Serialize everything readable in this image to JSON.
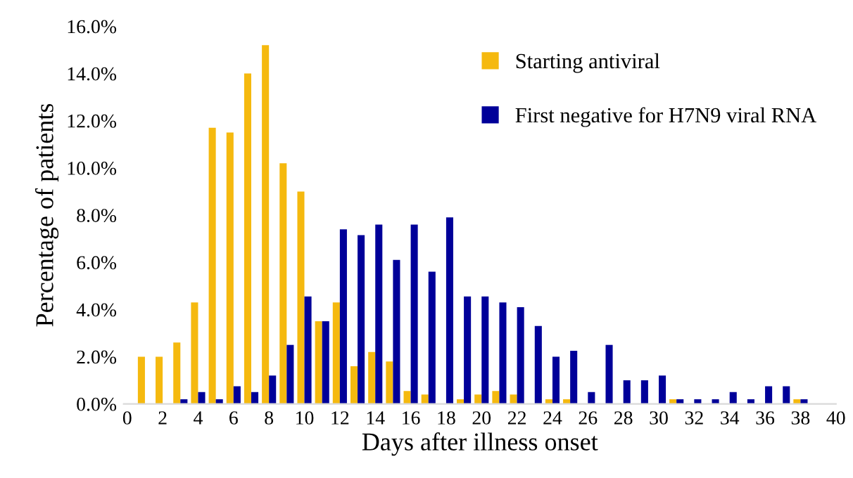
{
  "chart_data": {
    "type": "bar",
    "xlabel": "Days after illness onset",
    "ylabel": "Percentage of patients",
    "x": [
      1,
      2,
      3,
      4,
      5,
      6,
      7,
      8,
      9,
      10,
      11,
      12,
      13,
      14,
      15,
      16,
      17,
      18,
      19,
      20,
      21,
      22,
      23,
      24,
      25,
      26,
      27,
      28,
      29,
      30,
      31,
      32,
      33,
      34,
      35,
      36,
      37,
      38
    ],
    "series": [
      {
        "name": "Starting antiviral",
        "color": "#f5b90f",
        "values": [
          2.0,
          2.0,
          2.6,
          4.3,
          11.7,
          11.5,
          14.0,
          15.2,
          10.2,
          9.0,
          3.5,
          4.3,
          1.6,
          2.2,
          1.8,
          0.55,
          0.4,
          0,
          0.2,
          0.4,
          0.55,
          0.4,
          0,
          0.2,
          0.2,
          0,
          0,
          0,
          0,
          0,
          0.2,
          0,
          0,
          0,
          0,
          0,
          0,
          0.2
        ]
      },
      {
        "name": "First negative for H7N9 viral RNA",
        "color": "#000099",
        "values": [
          0,
          0,
          0.2,
          0.5,
          0.2,
          0.75,
          0.5,
          1.2,
          2.5,
          4.55,
          3.5,
          7.4,
          7.15,
          7.6,
          6.1,
          7.6,
          5.6,
          7.9,
          4.55,
          4.55,
          4.3,
          4.1,
          3.3,
          2.0,
          2.25,
          0.5,
          2.5,
          1.0,
          1.0,
          1.2,
          0.2,
          0.2,
          0.2,
          0.5,
          0.2,
          0.75,
          0.75,
          0.2
        ]
      }
    ],
    "xlim": [
      -0.2,
      40
    ],
    "xticks": [
      0,
      2,
      4,
      6,
      8,
      10,
      12,
      14,
      16,
      18,
      20,
      22,
      24,
      26,
      28,
      30,
      32,
      34,
      36,
      38,
      40
    ],
    "ylim": [
      0,
      16
    ],
    "yticks": [
      {
        "value": 0,
        "label": "0.0%"
      },
      {
        "value": 2,
        "label": "2.0%"
      },
      {
        "value": 4,
        "label": "4.0%"
      },
      {
        "value": 6,
        "label": "6.0%"
      },
      {
        "value": 8,
        "label": "8.0%"
      },
      {
        "value": 10,
        "label": "10.0%"
      },
      {
        "value": 12,
        "label": "12.0%"
      },
      {
        "value": 14,
        "label": "14.0%"
      },
      {
        "value": 16,
        "label": "16.0%"
      }
    ],
    "legend": "top right",
    "grid": false
  }
}
